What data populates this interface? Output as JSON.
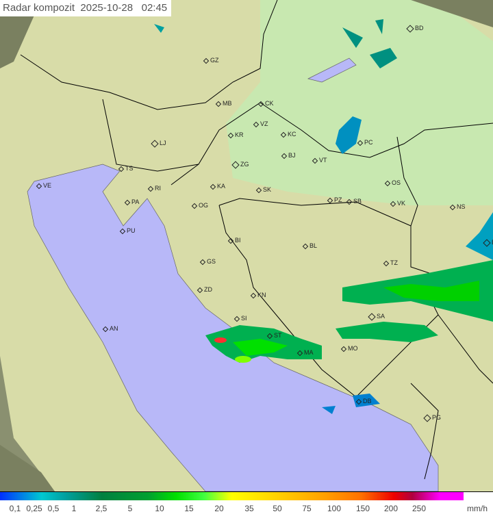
{
  "title": "Radar kompozit  2025-10-28   02:45",
  "colors": {
    "sea": "#b8b8f8",
    "land": "#d8e4b0",
    "lowland": "#c8e8b0",
    "outside": "#8a9070",
    "radar_low": "#00b050",
    "radar_mid": "#00e000",
    "radar_high": "#ff3030"
  },
  "cities": [
    "GZ",
    "BD",
    "MB",
    "CK",
    "VZ",
    "KR",
    "KC",
    "LJ",
    "ZG",
    "BJ",
    "VT",
    "PC",
    "TS",
    "VE",
    "RI",
    "KA",
    "SK",
    "PZ",
    "SB",
    "OS",
    "VK",
    "NS",
    "PA",
    "OG",
    "PU",
    "BI",
    "BL",
    "BG",
    "GS",
    "TZ",
    "ZD",
    "KN",
    "SI",
    "SA",
    "AN",
    "ST",
    "MA",
    "MO",
    "DB",
    "PG"
  ],
  "legend": {
    "ticks": [
      "0,1",
      "0,25",
      "0,5",
      "1",
      "2,5",
      "5",
      "10",
      "15",
      "20",
      "35",
      "50",
      "75",
      "100",
      "150",
      "200",
      "250"
    ],
    "unit": "mm/h"
  }
}
